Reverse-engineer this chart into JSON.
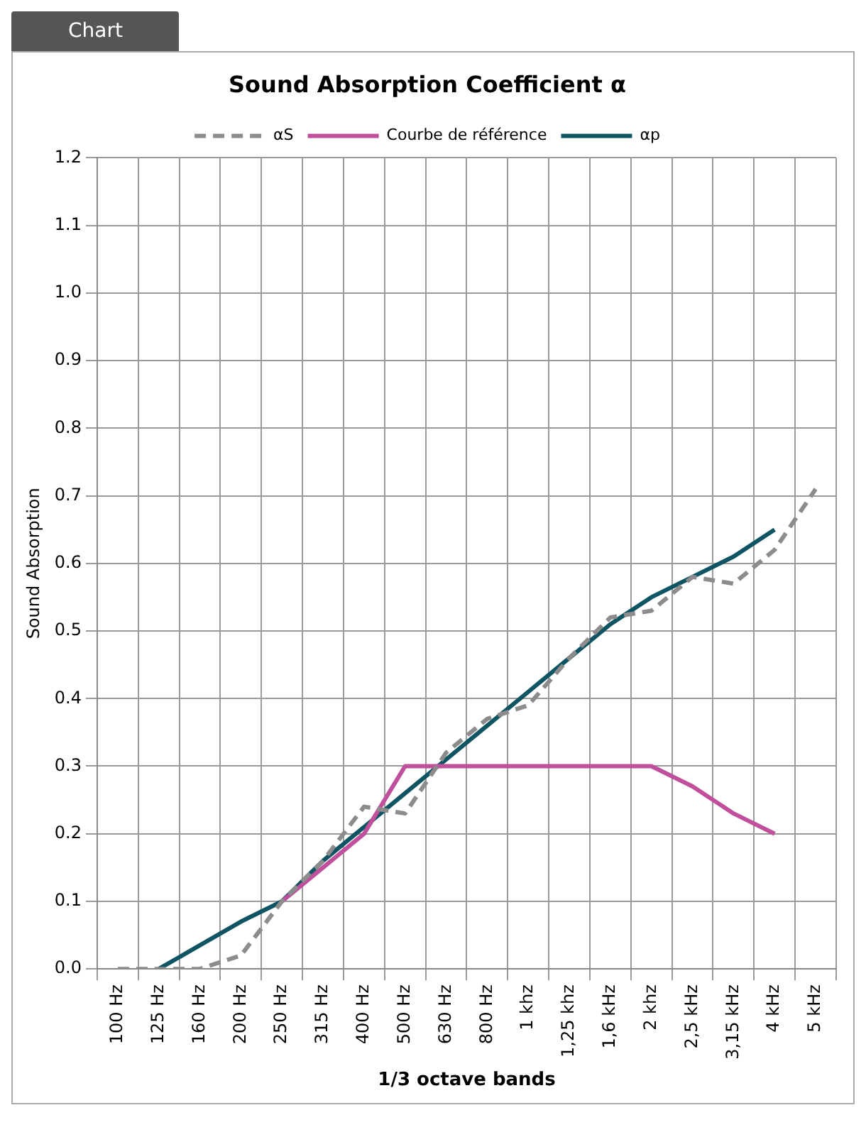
{
  "chart_data": {
    "type": "line",
    "title": "Sound Absorption Coefficient α",
    "xlabel": "1/3 octave bands",
    "ylabel": "Sound Absorption",
    "annotations": [
      "Chart"
    ],
    "categories": [
      "100 Hz",
      "125 Hz",
      "160 Hz",
      "200 Hz",
      "250 Hz",
      "315 Hz",
      "400 Hz",
      "500 Hz",
      "630 Hz",
      "800 Hz",
      "1 khz",
      "1,25 khz",
      "1,6 kHz",
      "2 khz",
      "2,5 kHz",
      "3,15 kHz",
      "4 kHz",
      "5 kHz"
    ],
    "series": [
      {
        "name": "αS",
        "color": "#8c8c8c",
        "line_style": "dashed",
        "values": [
          0,
          0,
          0,
          0.02,
          0.1,
          0.16,
          0.24,
          0.23,
          0.32,
          0.37,
          0.39,
          0.46,
          0.52,
          0.53,
          0.58,
          0.57,
          0.62,
          0.71
        ]
      },
      {
        "name": "Courbe de référence",
        "color": "#c0509b",
        "line_style": "solid",
        "values": [
          null,
          null,
          null,
          null,
          0.1,
          0.15,
          0.2,
          0.3,
          0.3,
          0.3,
          0.3,
          0.3,
          0.3,
          0.3,
          0.27,
          0.23,
          0.2,
          null
        ]
      },
      {
        "name": "αp",
        "color": "#0e5462",
        "line_style": "solid",
        "values": [
          null,
          0,
          0.035,
          0.07,
          0.1,
          0.16,
          0.21,
          0.26,
          0.31,
          0.36,
          0.41,
          0.46,
          0.51,
          0.55,
          0.58,
          0.61,
          0.65,
          null
        ]
      }
    ],
    "ylim": [
      0,
      1.2
    ],
    "yticks": [
      {
        "value": 0,
        "label": "0.0"
      },
      0.1,
      0.2,
      0.3,
      0.4,
      0.5,
      0.6,
      0.7,
      0.8,
      0.9,
      {
        "value": 1,
        "label": "1.0"
      },
      1.1,
      1.2
    ],
    "grid": true,
    "legend": "top",
    "marker": "none"
  }
}
